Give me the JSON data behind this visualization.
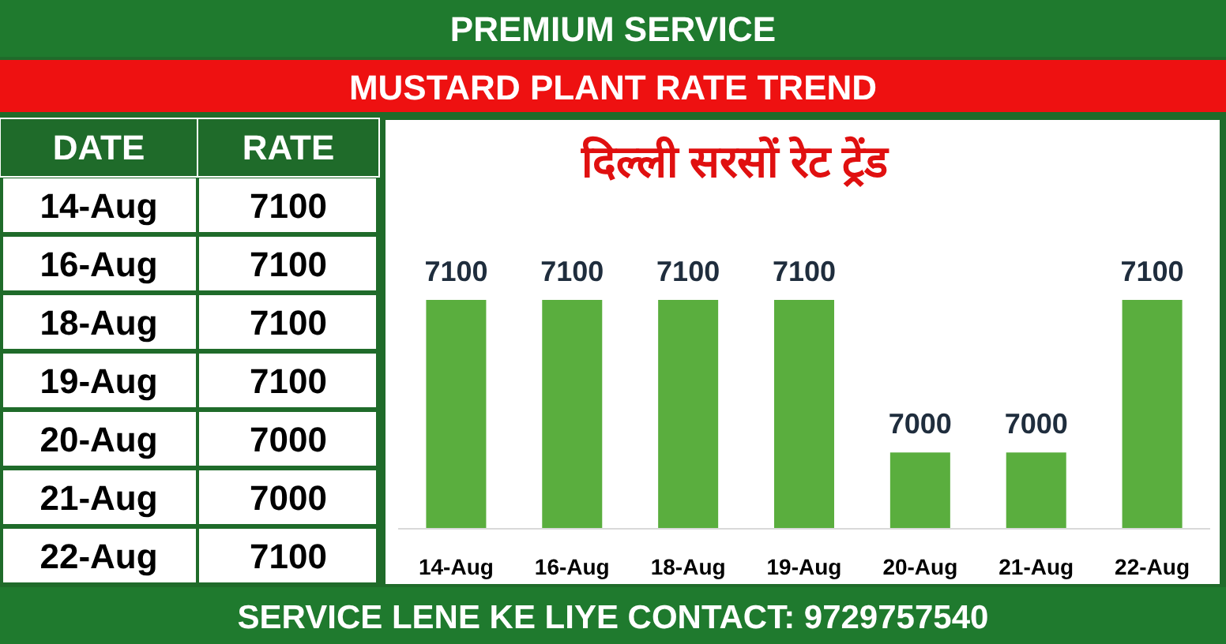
{
  "chart_data": [
    {
      "type": "other",
      "annotations": [
        "DATE",
        "RATE"
      ],
      "categories": [
        "14-Aug",
        "16-Aug",
        "18-Aug",
        "19-Aug",
        "20-Aug",
        "21-Aug",
        "22-Aug"
      ],
      "values": [
        7100,
        7100,
        7100,
        7100,
        7000,
        7000,
        7100
      ],
      "data_labels": true
    },
    {
      "type": "bar",
      "title": "दिल्ली सरसों रेट ट्रेंड",
      "annotations": [
        "PREMIUM SERVICE",
        "MUSTARD PLANT RATE TREND",
        "SERVICE LENE KE LIYE CONTACT: 9729757540"
      ],
      "categories": [
        "14-Aug",
        "16-Aug",
        "18-Aug",
        "19-Aug",
        "20-Aug",
        "21-Aug",
        "22-Aug"
      ],
      "values": [
        7100,
        7100,
        7100,
        7100,
        7000,
        7000,
        7100
      ],
      "color": "#5aae3e",
      "ylim": [
        6950,
        7100
      ],
      "data_labels": true
    }
  ]
}
